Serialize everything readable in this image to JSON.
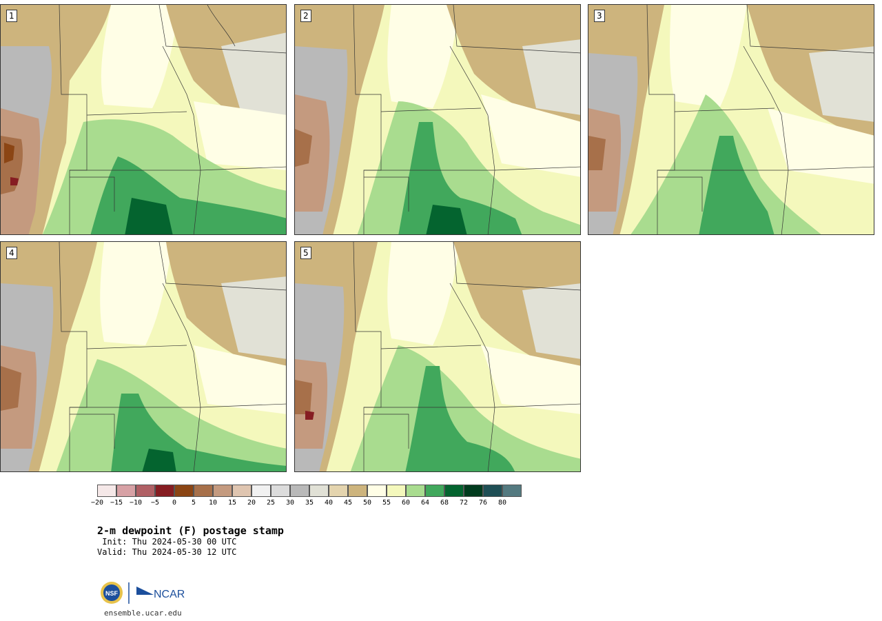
{
  "panels": [
    {
      "number": "1"
    },
    {
      "number": "2"
    },
    {
      "number": "3"
    },
    {
      "number": "4"
    },
    {
      "number": "5"
    }
  ],
  "colorbar": {
    "ticks": [
      "−20",
      "−15",
      "−10",
      "−5",
      "0",
      "5",
      "10",
      "15",
      "20",
      "25",
      "30",
      "35",
      "40",
      "45",
      "50",
      "55",
      "60",
      "64",
      "68",
      "72",
      "76",
      "80"
    ],
    "colors": [
      "#f5e8e8",
      "#d7a1a5",
      "#b06065",
      "#861d22",
      "#8b4514",
      "#a7704a",
      "#c49a7f",
      "#dfc5b0",
      "#f1f1f1",
      "#dcdcdc",
      "#b9b9b9",
      "#e1e1d6",
      "#e4d4ae",
      "#cdb47d",
      "#fffee6",
      "#f4f8bc",
      "#a9dc8f",
      "#41a85c",
      "#04642f",
      "#013b1e",
      "#1f4f55",
      "#547a80"
    ]
  },
  "title": "2-m dewpoint (F) postage stamp",
  "init": " Init: Thu 2024-05-30 00 UTC",
  "valid": "Valid: Thu 2024-05-30 12 UTC",
  "logos": {
    "nsf": "NSF",
    "ncar": "NCAR"
  },
  "website": "ensemble.ucar.edu"
}
